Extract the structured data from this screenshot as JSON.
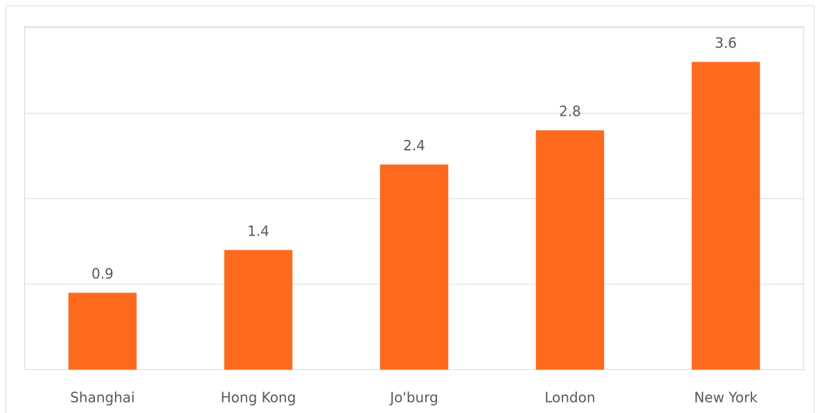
{
  "chart_data": {
    "type": "bar",
    "categories": [
      "Shanghai",
      "Hong Kong",
      "Jo'burg",
      "London",
      "New York"
    ],
    "values": [
      0.9,
      1.4,
      2.4,
      2.8,
      3.6
    ],
    "color": "#fe6a1d",
    "ylim": [
      0,
      4
    ],
    "yticks": [
      0,
      1,
      2,
      3,
      4
    ],
    "ytick_labels": false,
    "grid": true,
    "data_labels": true
  }
}
